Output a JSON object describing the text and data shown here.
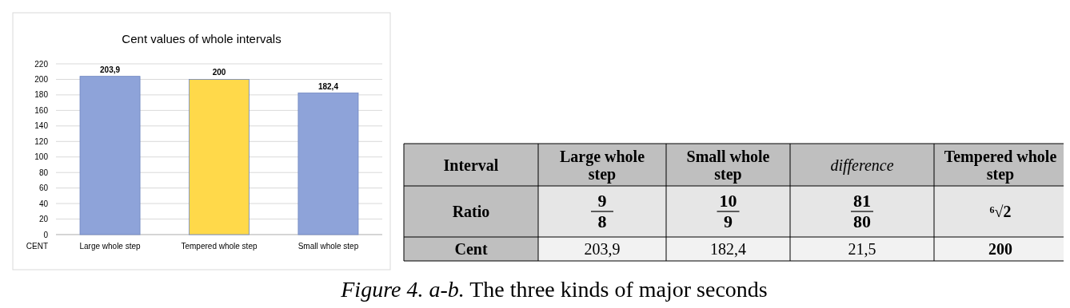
{
  "chart_data": [
    {
      "type": "bar",
      "title": "Cent values of whole intervals",
      "xlabel": "CENT",
      "categories": [
        "Large whole step",
        "Tempered whole step",
        "Small whole step"
      ],
      "values": [
        203.9,
        200,
        182.4
      ],
      "colors": [
        "#8ea3d9",
        "#ffd94a",
        "#8ea3d9"
      ],
      "value_labels": [
        "203,9",
        "200",
        "182,4"
      ],
      "ylim": [
        0,
        220
      ],
      "yticks": [
        0,
        20,
        40,
        60,
        80,
        100,
        120,
        140,
        160,
        180,
        200,
        220
      ],
      "grid": "y"
    },
    {
      "type": "other",
      "ylabel": "Interval",
      "categories": [
        "Large whole step",
        "Small whole step",
        "difference",
        "Tempered whole step"
      ],
      "y_categories": [
        "Ratio",
        "Cent"
      ],
      "cell_labels": [
        [
          "9\n8",
          "10\n9",
          "81\n80",
          "⁶√2"
        ],
        [
          "203,9",
          "182,4",
          "21,5",
          "200"
        ]
      ],
      "annotations": [
        "Figure 4. a-b. The three kinds of major seconds"
      ]
    }
  ]
}
